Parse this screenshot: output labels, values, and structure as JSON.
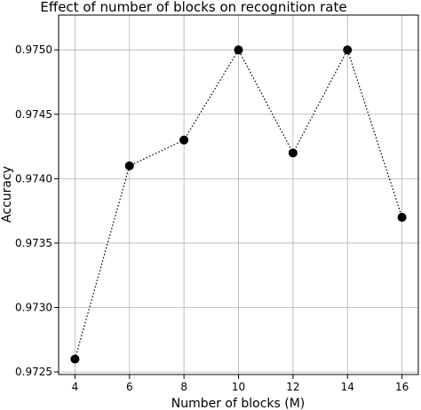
{
  "chart_data": {
    "type": "line",
    "title": "Effect of number of blocks on recognition rate",
    "xlabel": "Number of blocks (M)",
    "ylabel": "Accuracy",
    "x": [
      4,
      6,
      8,
      10,
      12,
      14,
      16
    ],
    "series": [
      {
        "values": [
          0.9726,
          0.9741,
          0.9743,
          0.975,
          0.9742,
          0.975,
          0.9737
        ]
      }
    ],
    "xticks": [
      "4",
      "6",
      "8",
      "10",
      "12",
      "14",
      "16"
    ],
    "yticks": [
      "0.9725",
      "0.9730",
      "0.9735",
      "0.9740",
      "0.9745",
      "0.9750"
    ],
    "xlim": [
      3.4,
      16.6
    ],
    "ylim": [
      0.97248,
      0.97527
    ],
    "grid": true,
    "line_style": "dotted",
    "marker": "circle",
    "color": "#000000"
  }
}
